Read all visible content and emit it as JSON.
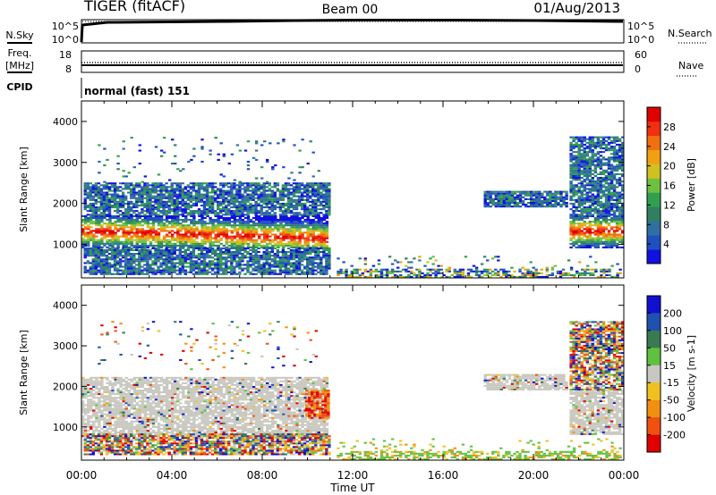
{
  "header": {
    "radar": "TIGER (fitACF)",
    "beam": "Beam 00",
    "date": "01/Aug/2013"
  },
  "top_panels": {
    "nsky_label": "N.Sky",
    "nsky_ticks": [
      "10^5",
      "10^0"
    ],
    "nsearch_label": "N.Search",
    "nsearch_ticks": [
      "10^5",
      "10^0"
    ],
    "freq_label_1": "Freq.",
    "freq_label_2": "[MHz]",
    "freq_ticks": [
      "18",
      "8"
    ],
    "nave_label": "Nave",
    "nave_ticks": [
      "60",
      "0"
    ],
    "cpid_label": "CPID",
    "cpid_text": "normal (fast) 151"
  },
  "chart_data": [
    {
      "type": "heatmap",
      "title": "Power",
      "ylabel": "Slant Range [km]",
      "xlabel": "Time UT",
      "ylim": [
        180,
        4500
      ],
      "x_ticks": [
        "00:00",
        "04:00",
        "08:00",
        "12:00",
        "16:00",
        "20:00",
        "00:00"
      ],
      "y_ticks": [
        "1000",
        "2000",
        "3000",
        "4000"
      ],
      "colorbar": {
        "label": "Power [dB]",
        "ticks": [
          "4",
          "8",
          "12",
          "16",
          "20",
          "24",
          "28"
        ],
        "colors": [
          "#1010e0",
          "#2050c0",
          "#3070a0",
          "#308060",
          "#30a050",
          "#70c040",
          "#d0c020",
          "#f0a010",
          "#f07010",
          "#f03010",
          "#e00000"
        ]
      },
      "regions": [
        {
          "x": [
            0.0,
            10.9
          ],
          "y": [
            900,
            1700
          ],
          "level": "high",
          "center_drop": 180
        },
        {
          "x": [
            0.1,
            10.9
          ],
          "y": [
            1700,
            2500
          ],
          "level": "low"
        },
        {
          "x": [
            0.1,
            10.9
          ],
          "y": [
            250,
            900
          ],
          "level": "low"
        },
        {
          "x": [
            0.6,
            10.5
          ],
          "y": [
            2500,
            3600
          ],
          "level": "sparse"
        },
        {
          "x": [
            11.3,
            23.9
          ],
          "y": [
            180,
            700
          ],
          "level": "tail"
        },
        {
          "x": [
            17.8,
            21.5
          ],
          "y": [
            1900,
            2300
          ],
          "level": "low"
        },
        {
          "x": [
            21.6,
            24.0
          ],
          "y": [
            900,
            1700
          ],
          "level": "high",
          "center_drop": 0
        },
        {
          "x": [
            21.6,
            24.0
          ],
          "y": [
            1700,
            3600
          ],
          "level": "low"
        }
      ]
    },
    {
      "type": "heatmap",
      "title": "Velocity",
      "ylabel": "Slant Range [km]",
      "xlabel": "Time UT",
      "ylim": [
        180,
        4500
      ],
      "x_ticks": [
        "00:00",
        "04:00",
        "08:00",
        "12:00",
        "16:00",
        "20:00",
        "00:00"
      ],
      "y_ticks": [
        "1000",
        "2000",
        "3000",
        "4000"
      ],
      "colorbar": {
        "label": "Velocity [m s-1]",
        "ticks": [
          "200",
          "100",
          "50",
          "15",
          "-15",
          "-50",
          "-100",
          "-200"
        ],
        "colors": [
          "#1010d0",
          "#2050b0",
          "#3a7a50",
          "#60c040",
          "#c8c8c0",
          "#f0c020",
          "#f09010",
          "#f05010",
          "#e00000"
        ]
      },
      "regions": [
        {
          "x": [
            0.0,
            10.9
          ],
          "y": [
            750,
            2200
          ],
          "level": "gray"
        },
        {
          "x": [
            0.1,
            10.9
          ],
          "y": [
            300,
            800
          ],
          "level": "mixed"
        },
        {
          "x": [
            0.6,
            10.5
          ],
          "y": [
            2400,
            3600
          ],
          "level": "sparse"
        },
        {
          "x": [
            9.9,
            10.9
          ],
          "y": [
            1200,
            1900
          ],
          "level": "red"
        },
        {
          "x": [
            11.3,
            23.9
          ],
          "y": [
            180,
            700
          ],
          "level": "tail"
        },
        {
          "x": [
            17.8,
            21.5
          ],
          "y": [
            1900,
            2300
          ],
          "level": "gray"
        },
        {
          "x": [
            21.6,
            24.0
          ],
          "y": [
            800,
            1900
          ],
          "level": "gray"
        },
        {
          "x": [
            21.6,
            24.0
          ],
          "y": [
            1900,
            3600
          ],
          "level": "mixed"
        }
      ]
    }
  ],
  "time_axis": {
    "ticks": [
      "00:00",
      "04:00",
      "08:00",
      "12:00",
      "16:00",
      "20:00",
      "00:00"
    ],
    "label": "Time UT"
  }
}
